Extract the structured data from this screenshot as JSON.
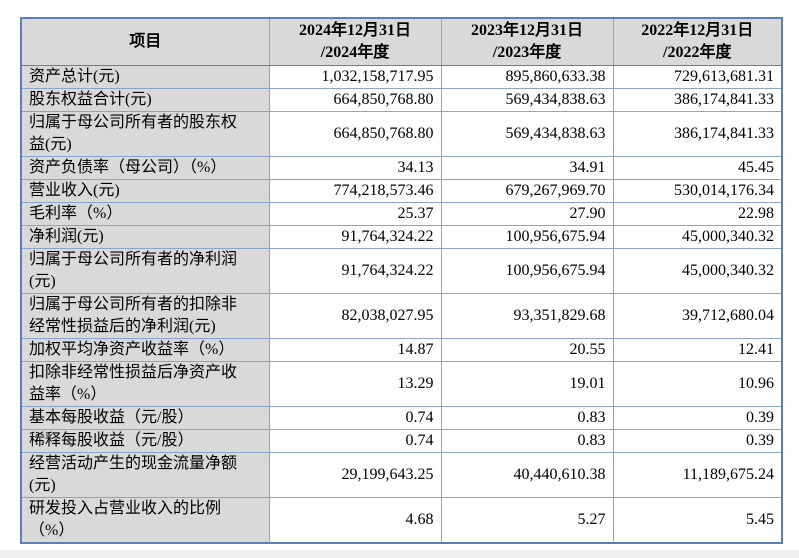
{
  "table": {
    "header": {
      "item_col": "项目",
      "col_2024": "2024年12月31日\n/2024年度",
      "col_2023": "2023年12月31日\n/2023年度",
      "col_2022": "2022年12月31日\n/2022年度"
    },
    "rows": [
      {
        "label": "资产总计(元)",
        "values": [
          "1,032,158,717.95",
          "895,860,633.38",
          "729,613,681.31"
        ]
      },
      {
        "label": "股东权益合计(元)",
        "values": [
          "664,850,768.80",
          "569,434,838.63",
          "386,174,841.33"
        ]
      },
      {
        "label": "归属于母公司所有者的股东权\n益(元)",
        "values": [
          "664,850,768.80",
          "569,434,838.63",
          "386,174,841.33"
        ]
      },
      {
        "label": "资产负债率（母公司）（%）",
        "values": [
          "34.13",
          "34.91",
          "45.45"
        ]
      },
      {
        "label": "营业收入(元)",
        "values": [
          "774,218,573.46",
          "679,267,969.70",
          "530,014,176.34"
        ]
      },
      {
        "label": "毛利率（%）",
        "values": [
          "25.37",
          "27.90",
          "22.98"
        ]
      },
      {
        "label": "净利润(元)",
        "values": [
          "91,764,324.22",
          "100,956,675.94",
          "45,000,340.32"
        ]
      },
      {
        "label": "归属于母公司所有者的净利润\n(元)",
        "values": [
          "91,764,324.22",
          "100,956,675.94",
          "45,000,340.32"
        ]
      },
      {
        "label": "归属于母公司所有者的扣除非\n经常性损益后的净利润(元)",
        "values": [
          "82,038,027.95",
          "93,351,829.68",
          "39,712,680.04"
        ]
      },
      {
        "label": "加权平均净资产收益率（%）",
        "values": [
          "14.87",
          "20.55",
          "12.41"
        ]
      },
      {
        "label": "扣除非经常性损益后净资产收\n益率（%）",
        "values": [
          "13.29",
          "19.01",
          "10.96"
        ]
      },
      {
        "label": "基本每股收益（元/股）",
        "values": [
          "0.74",
          "0.83",
          "0.39"
        ]
      },
      {
        "label": "稀释每股收益（元/股）",
        "values": [
          "0.74",
          "0.83",
          "0.39"
        ]
      },
      {
        "label": "经营活动产生的现金流量净额\n(元)",
        "values": [
          "29,199,643.25",
          "40,440,610.38",
          "11,189,675.24"
        ]
      },
      {
        "label": "研发投入占营业收入的比例\n（%）",
        "values": [
          "4.68",
          "5.27",
          "5.45"
        ]
      }
    ]
  },
  "colors": {
    "outer_border": "#5c7fb4",
    "inner_border": "#8aa4cd",
    "shaded_cell": "#d9d9d9",
    "page_bottom_strip": "#eef0f0"
  }
}
